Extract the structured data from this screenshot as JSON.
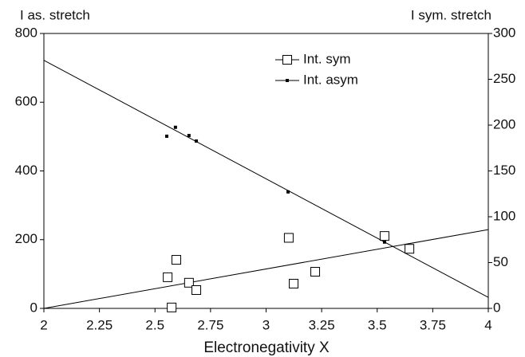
{
  "chart_data": {
    "type": "scatter",
    "xlabel": "Electronegativity X",
    "ylabel": "I as. stretch",
    "y2label": "I sym. stretch",
    "xlim": [
      2,
      4
    ],
    "xticks": [
      2,
      2.25,
      2.5,
      2.75,
      3,
      3.25,
      3.5,
      3.75,
      4
    ],
    "ylim": [
      0,
      800
    ],
    "yticks": [
      0,
      200,
      400,
      600,
      800
    ],
    "y2lim": [
      0,
      300
    ],
    "y2ticks": [
      0,
      50,
      100,
      150,
      200,
      250,
      300
    ],
    "legend": "top-center",
    "series": [
      {
        "name": "Int. sym",
        "color": "#000000",
        "marker": "square",
        "axis": "y2",
        "x": [
          2.557,
          2.596,
          2.575,
          2.653,
          2.686,
          3.102,
          3.124,
          3.221,
          3.533,
          3.645
        ],
        "values": [
          34,
          53,
          1,
          28,
          20,
          77,
          27,
          40,
          79,
          65
        ],
        "trendline": {
          "x": [
            2,
            4
          ],
          "values": [
            0,
            86
          ]
        }
      },
      {
        "name": "Int. asym",
        "color": "#000000",
        "marker": "dot",
        "axis": "y",
        "x": [
          2.553,
          2.592,
          2.653,
          2.686,
          3.099,
          3.533
        ],
        "values": [
          501,
          527,
          503,
          487,
          339,
          193
        ],
        "trendline": {
          "x": [
            2,
            4
          ],
          "values": [
            722,
            32
          ]
        }
      }
    ]
  }
}
